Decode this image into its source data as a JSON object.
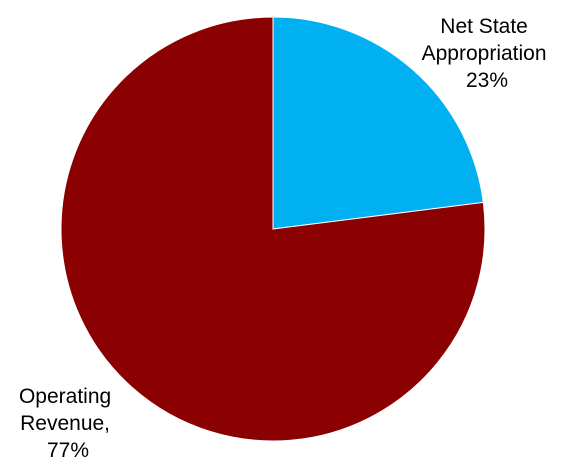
{
  "chart_data": {
    "type": "pie",
    "title": "",
    "start_angle_deg": 90,
    "direction": "clockwise",
    "slices": [
      {
        "label_lines": [
          "Net State",
          "Appropriation",
          "23%"
        ],
        "value": 23,
        "color": "#00B0F0"
      },
      {
        "label_lines": [
          "Operating",
          "Revenue,",
          "77%"
        ],
        "value": 77,
        "color": "#8B0000"
      }
    ],
    "legend": "none"
  }
}
